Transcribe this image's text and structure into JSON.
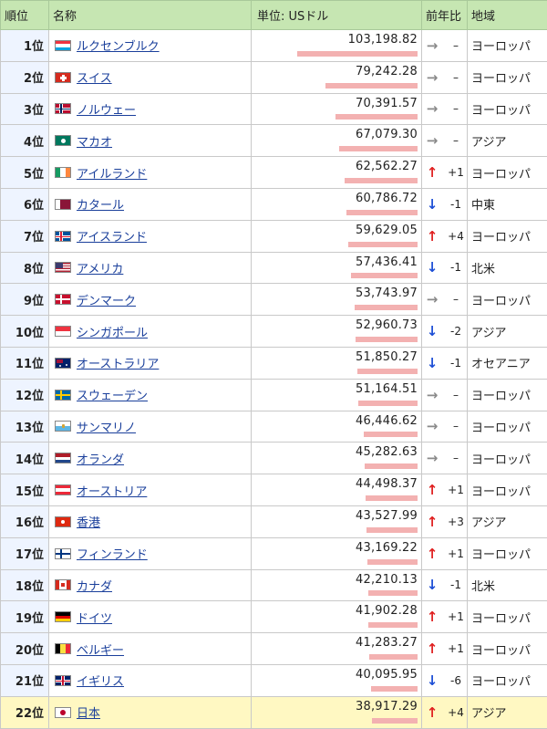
{
  "header": {
    "rank": "順位",
    "name": "名称",
    "value": "単位: USドル",
    "trend": "前年比",
    "region": "地域"
  },
  "colors": {
    "up": "#e02020",
    "down": "#1d4fd6",
    "same": "#8a8a8a",
    "bar": "#f3b1b1",
    "header_bg": "#c6e6b2",
    "highlight": "#fff8c2"
  },
  "rows": [
    {
      "rank": "1位",
      "name": "ルクセンブルク",
      "flag": "luxembourg-flag-icon",
      "value": "103,198.82",
      "amount": 103198.82,
      "arrow": "→",
      "direction": "same",
      "change": "–",
      "region": "ヨーロッパ"
    },
    {
      "rank": "2位",
      "name": "スイス",
      "flag": "switzerland-flag-icon",
      "value": "79,242.28",
      "amount": 79242.28,
      "arrow": "→",
      "direction": "same",
      "change": "–",
      "region": "ヨーロッパ"
    },
    {
      "rank": "3位",
      "name": "ノルウェー",
      "flag": "norway-flag-icon",
      "value": "70,391.57",
      "amount": 70391.57,
      "arrow": "→",
      "direction": "same",
      "change": "–",
      "region": "ヨーロッパ"
    },
    {
      "rank": "4位",
      "name": "マカオ",
      "flag": "macau-flag-icon",
      "value": "67,079.30",
      "amount": 67079.3,
      "arrow": "→",
      "direction": "same",
      "change": "–",
      "region": "アジア"
    },
    {
      "rank": "5位",
      "name": "アイルランド",
      "flag": "ireland-flag-icon",
      "value": "62,562.27",
      "amount": 62562.27,
      "arrow": "↑",
      "direction": "up",
      "change": "+1",
      "region": "ヨーロッパ"
    },
    {
      "rank": "6位",
      "name": "カタール",
      "flag": "qatar-flag-icon",
      "value": "60,786.72",
      "amount": 60786.72,
      "arrow": "↓",
      "direction": "down",
      "change": "-1",
      "region": "中東"
    },
    {
      "rank": "7位",
      "name": "アイスランド",
      "flag": "iceland-flag-icon",
      "value": "59,629.05",
      "amount": 59629.05,
      "arrow": "↑",
      "direction": "up",
      "change": "+4",
      "region": "ヨーロッパ"
    },
    {
      "rank": "8位",
      "name": "アメリカ",
      "flag": "usa-flag-icon",
      "value": "57,436.41",
      "amount": 57436.41,
      "arrow": "↓",
      "direction": "down",
      "change": "-1",
      "region": "北米"
    },
    {
      "rank": "9位",
      "name": "デンマーク",
      "flag": "denmark-flag-icon",
      "value": "53,743.97",
      "amount": 53743.97,
      "arrow": "→",
      "direction": "same",
      "change": "–",
      "region": "ヨーロッパ"
    },
    {
      "rank": "10位",
      "name": "シンガポール",
      "flag": "singapore-flag-icon",
      "value": "52,960.73",
      "amount": 52960.73,
      "arrow": "↓",
      "direction": "down",
      "change": "-2",
      "region": "アジア"
    },
    {
      "rank": "11位",
      "name": "オーストラリア",
      "flag": "australia-flag-icon",
      "value": "51,850.27",
      "amount": 51850.27,
      "arrow": "↓",
      "direction": "down",
      "change": "-1",
      "region": "オセアニア"
    },
    {
      "rank": "12位",
      "name": "スウェーデン",
      "flag": "sweden-flag-icon",
      "value": "51,164.51",
      "amount": 51164.51,
      "arrow": "→",
      "direction": "same",
      "change": "–",
      "region": "ヨーロッパ"
    },
    {
      "rank": "13位",
      "name": "サンマリノ",
      "flag": "san-marino-flag-icon",
      "value": "46,446.62",
      "amount": 46446.62,
      "arrow": "→",
      "direction": "same",
      "change": "–",
      "region": "ヨーロッパ"
    },
    {
      "rank": "14位",
      "name": "オランダ",
      "flag": "netherlands-flag-icon",
      "value": "45,282.63",
      "amount": 45282.63,
      "arrow": "→",
      "direction": "same",
      "change": "–",
      "region": "ヨーロッパ"
    },
    {
      "rank": "15位",
      "name": "オーストリア",
      "flag": "austria-flag-icon",
      "value": "44,498.37",
      "amount": 44498.37,
      "arrow": "↑",
      "direction": "up",
      "change": "+1",
      "region": "ヨーロッパ"
    },
    {
      "rank": "16位",
      "name": "香港",
      "flag": "hong-kong-flag-icon",
      "value": "43,527.99",
      "amount": 43527.99,
      "arrow": "↑",
      "direction": "up",
      "change": "+3",
      "region": "アジア"
    },
    {
      "rank": "17位",
      "name": "フィンランド",
      "flag": "finland-flag-icon",
      "value": "43,169.22",
      "amount": 43169.22,
      "arrow": "↑",
      "direction": "up",
      "change": "+1",
      "region": "ヨーロッパ"
    },
    {
      "rank": "18位",
      "name": "カナダ",
      "flag": "canada-flag-icon",
      "value": "42,210.13",
      "amount": 42210.13,
      "arrow": "↓",
      "direction": "down",
      "change": "-1",
      "region": "北米"
    },
    {
      "rank": "19位",
      "name": "ドイツ",
      "flag": "germany-flag-icon",
      "value": "41,902.28",
      "amount": 41902.28,
      "arrow": "↑",
      "direction": "up",
      "change": "+1",
      "region": "ヨーロッパ"
    },
    {
      "rank": "20位",
      "name": "ベルギー",
      "flag": "belgium-flag-icon",
      "value": "41,283.27",
      "amount": 41283.27,
      "arrow": "↑",
      "direction": "up",
      "change": "+1",
      "region": "ヨーロッパ"
    },
    {
      "rank": "21位",
      "name": "イギリス",
      "flag": "uk-flag-icon",
      "value": "40,095.95",
      "amount": 40095.95,
      "arrow": "↓",
      "direction": "down",
      "change": "-6",
      "region": "ヨーロッパ"
    },
    {
      "rank": "22位",
      "name": "日本",
      "flag": "japan-flag-icon",
      "value": "38,917.29",
      "amount": 38917.29,
      "arrow": "↑",
      "direction": "up",
      "change": "+4",
      "region": "アジア",
      "highlight": true
    }
  ]
}
